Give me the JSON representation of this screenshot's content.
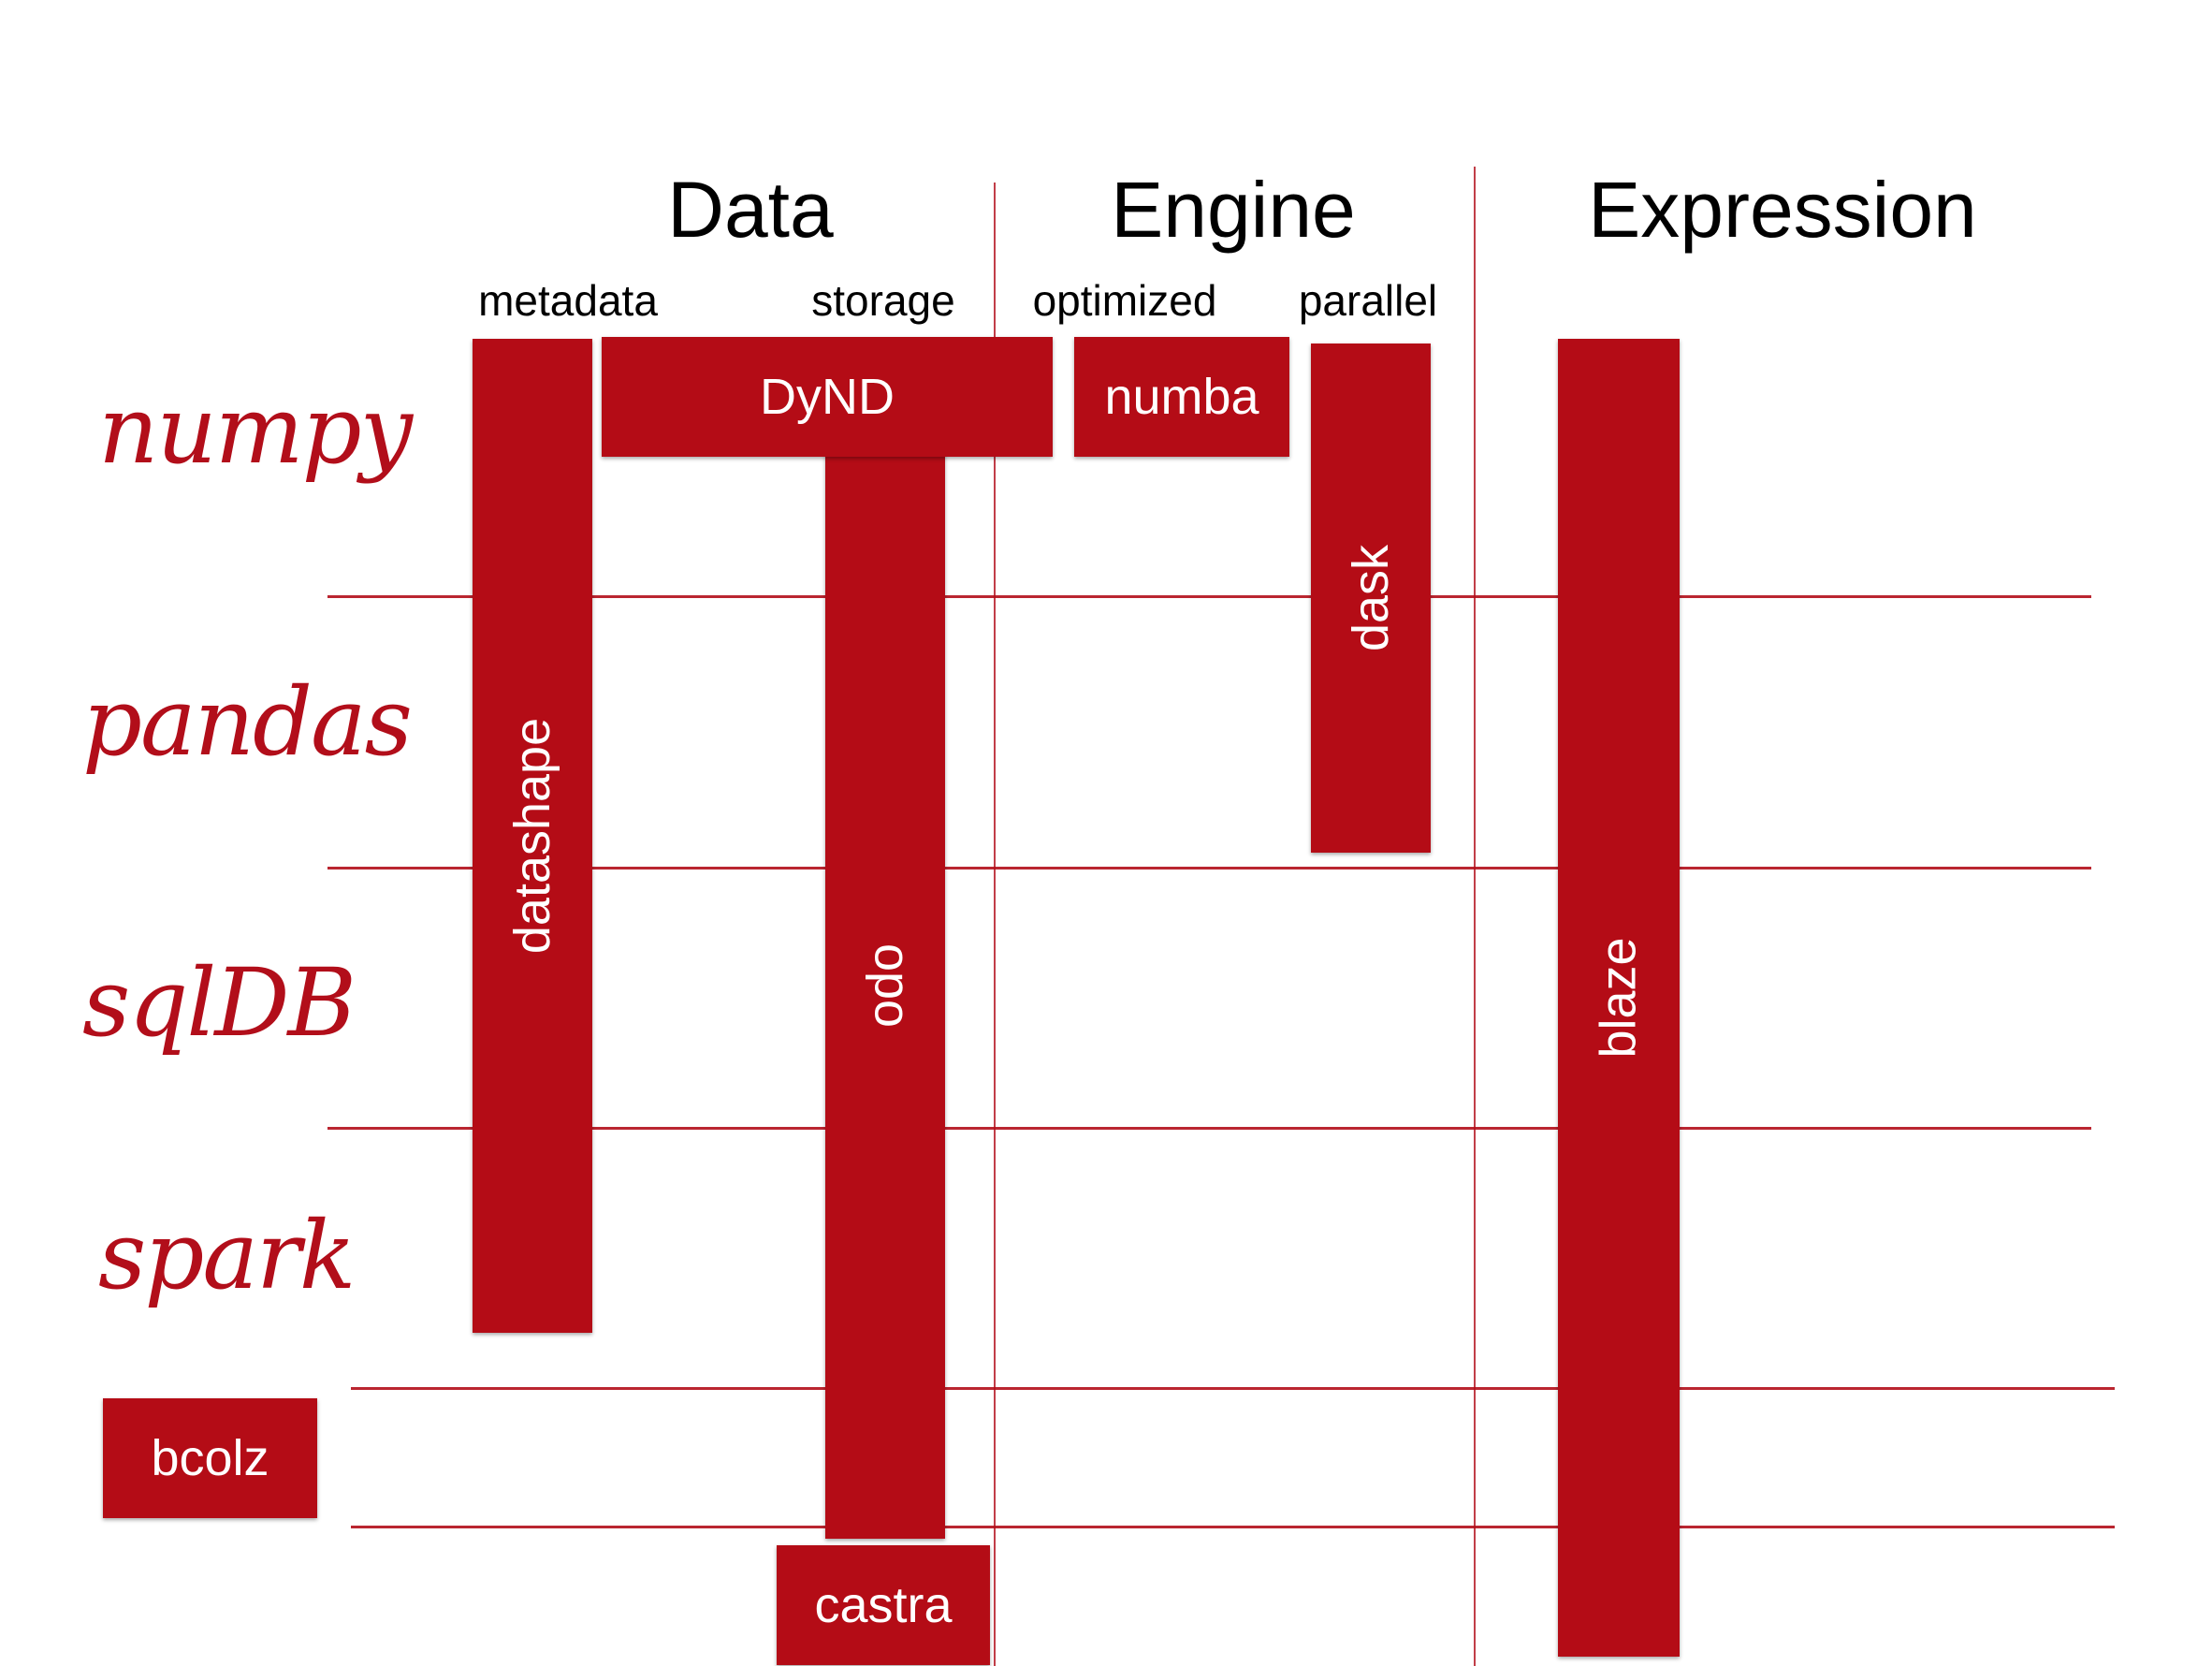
{
  "columns": {
    "data": "Data",
    "engine": "Engine",
    "expression": "Expression"
  },
  "subcolumns": {
    "metadata": "metadata",
    "storage": "storage",
    "optimized": "optimized",
    "parallel": "parallel"
  },
  "rows": {
    "numpy": "numpy",
    "pandas": "pandas",
    "sqldb": "sqlDB",
    "spark": "spark"
  },
  "projects": {
    "dynd": "DyND",
    "numba": "numba",
    "datashape": "datashape",
    "odo": "odo",
    "dask": "dask",
    "blaze": "blaze",
    "bcolz": "bcolz",
    "castra": "castra"
  },
  "colors": {
    "accent": "#b40c16",
    "line": "#b20e1a"
  }
}
